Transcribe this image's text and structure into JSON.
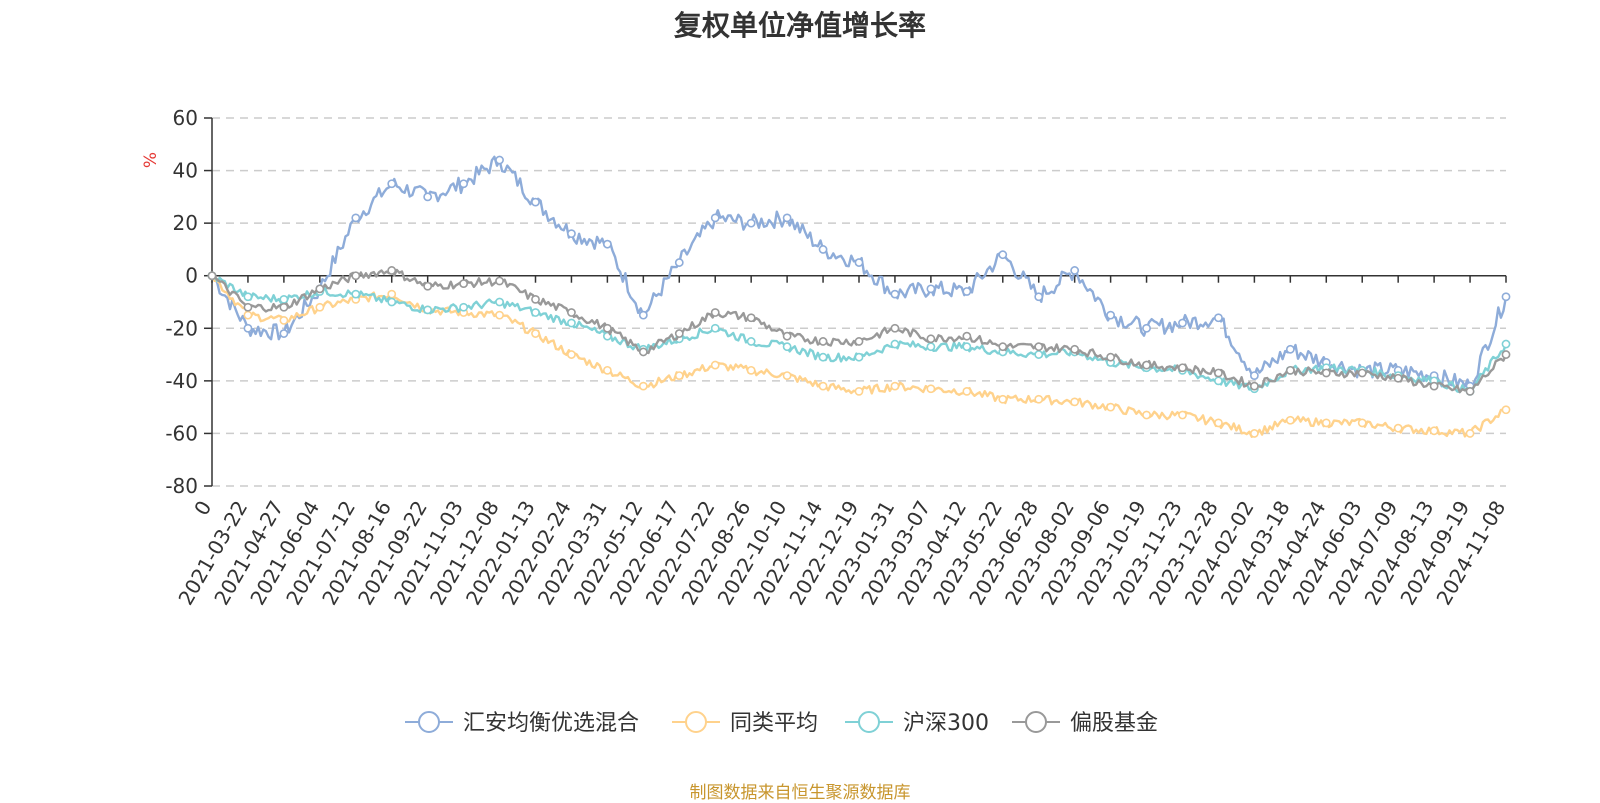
{
  "chart_data": {
    "type": "line",
    "title": "复权单位净值增长率",
    "ylabel": "%",
    "xlabel": "",
    "ylim": [
      -80,
      60
    ],
    "yticks": [
      60,
      40,
      20,
      0,
      -20,
      -40,
      -60,
      -80
    ],
    "categories": [
      "0",
      "2021-03-22",
      "2021-04-27",
      "2021-06-04",
      "2021-07-12",
      "2021-08-16",
      "2021-09-22",
      "2021-11-03",
      "2021-12-08",
      "2022-01-13",
      "2022-02-24",
      "2022-03-31",
      "2022-05-12",
      "2022-06-17",
      "2022-07-22",
      "2022-08-26",
      "2022-10-10",
      "2022-11-14",
      "2022-12-19",
      "2023-01-31",
      "2023-03-07",
      "2023-04-12",
      "2023-05-22",
      "2023-06-28",
      "2023-08-02",
      "2023-09-06",
      "2023-10-19",
      "2023-11-23",
      "2023-12-28",
      "2024-02-02",
      "2024-03-18",
      "2024-04-24",
      "2024-06-03",
      "2024-07-09",
      "2024-08-13",
      "2024-09-19",
      "2024-11-08"
    ],
    "grid": true,
    "legend_position": "bottom",
    "series": [
      {
        "name": "汇安均衡优选混合",
        "color": "#8eacd9",
        "values": [
          0,
          -20,
          -22,
          -5,
          22,
          35,
          30,
          35,
          44,
          28,
          16,
          12,
          -15,
          5,
          22,
          20,
          22,
          10,
          5,
          -7,
          -5,
          -6,
          8,
          -8,
          2,
          -15,
          -20,
          -18,
          -16,
          -38,
          -28,
          -33,
          -36,
          -36,
          -38,
          -42,
          -8
        ]
      },
      {
        "name": "同类平均",
        "color": "#ffd28c",
        "values": [
          0,
          -15,
          -17,
          -12,
          -9,
          -7,
          -13,
          -14,
          -15,
          -22,
          -30,
          -36,
          -42,
          -38,
          -34,
          -36,
          -38,
          -42,
          -44,
          -42,
          -43,
          -44,
          -47,
          -47,
          -48,
          -50,
          -53,
          -53,
          -56,
          -60,
          -55,
          -56,
          -56,
          -58,
          -59,
          -60,
          -51
        ]
      },
      {
        "name": "沪深300",
        "color": "#7fd1d6",
        "values": [
          0,
          -8,
          -9,
          -6,
          -7,
          -10,
          -13,
          -12,
          -10,
          -14,
          -18,
          -23,
          -28,
          -24,
          -20,
          -25,
          -27,
          -31,
          -31,
          -26,
          -27,
          -27,
          -29,
          -30,
          -29,
          -33,
          -35,
          -36,
          -40,
          -43,
          -36,
          -35,
          -36,
          -38,
          -40,
          -44,
          -26
        ]
      },
      {
        "name": "偏股基金",
        "color": "#999999",
        "values": [
          0,
          -12,
          -12,
          -5,
          0,
          2,
          -4,
          -3,
          -2,
          -9,
          -14,
          -20,
          -29,
          -22,
          -14,
          -16,
          -23,
          -25,
          -25,
          -20,
          -24,
          -23,
          -27,
          -27,
          -28,
          -31,
          -34,
          -35,
          -37,
          -42,
          -36,
          -37,
          -37,
          -39,
          -42,
          -44,
          -30
        ]
      }
    ]
  },
  "source_note": "制图数据来自恒生聚源数据库"
}
